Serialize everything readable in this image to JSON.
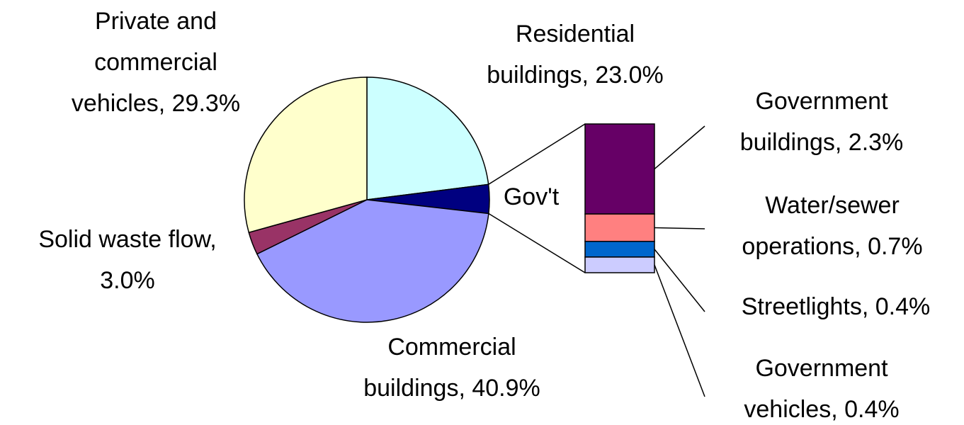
{
  "chart_data": {
    "type": "pie-of-bar",
    "pie": {
      "labels": [
        [
          "Residential",
          "buildings, 23.0%"
        ],
        [
          "Gov't"
        ],
        [
          "Commercial",
          "buildings, 40.9%"
        ],
        [
          "Solid waste flow,",
          "3.0%"
        ],
        [
          "Private and",
          "commercial",
          "vehicles, 29.3%"
        ]
      ],
      "values": [
        23.0,
        3.8,
        40.9,
        3.0,
        29.3
      ],
      "colors": [
        "#ccffff",
        "#000080",
        "#9999ff",
        "#993366",
        "#ffffcc"
      ]
    },
    "bar": {
      "labels": [
        [
          "Government",
          "buildings, 2.3%"
        ],
        [
          "Water/sewer",
          "operations, 0.7%"
        ],
        [
          "Streetlights, 0.4%"
        ],
        [
          "Government",
          "vehicles, 0.4%"
        ]
      ],
      "values": [
        2.3,
        0.7,
        0.4,
        0.4
      ],
      "colors": [
        "#660066",
        "#ff8080",
        "#0066cc",
        "#ccccff"
      ]
    }
  }
}
